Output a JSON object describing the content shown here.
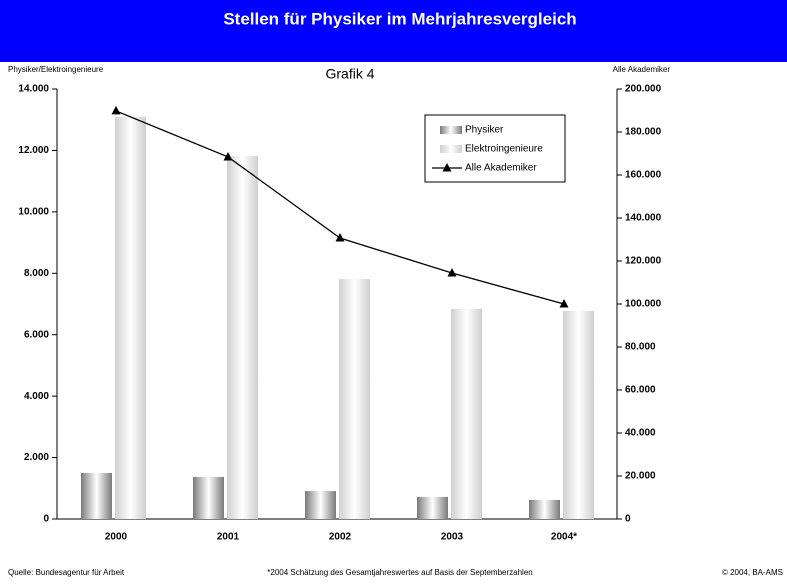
{
  "chart_data": {
    "type": "bar",
    "title": "Stellen für Physiker im Mehrjahresvergleich",
    "subtitle": "Grafik 4",
    "ylabel": "Physiker/Elektroingenieure",
    "y2label": "Alle Akademiker",
    "categories": [
      "2000",
      "2001",
      "2002",
      "2003",
      "2004*"
    ],
    "series": [
      {
        "name": "Physiker",
        "color": "#7a7a7a",
        "values": [
          1500,
          1370,
          910,
          720,
          620
        ]
      },
      {
        "name": "Elektroingenieure",
        "color": "#cfcfcf",
        "values": [
          13090,
          11820,
          7810,
          6840,
          6775
        ]
      },
      {
        "name": "Alle Akademiker",
        "color": "#000000",
        "type": "line",
        "axis": "y2",
        "values": [
          189800,
          168400,
          130700,
          114400,
          100000
        ]
      }
    ],
    "ylim": [
      0,
      14000
    ],
    "yticks": [
      0,
      {
        "value": 2000,
        "label": "2.000"
      },
      {
        "value": 4000,
        "label": "4.000"
      },
      {
        "value": 6000,
        "label": "6.000"
      },
      {
        "value": 8000,
        "label": "8.000"
      },
      {
        "value": 10000,
        "label": "10.000"
      },
      {
        "value": 12000,
        "label": "12.000"
      },
      {
        "value": 14000,
        "label": "14.000"
      }
    ],
    "y2lim": [
      0,
      200000
    ],
    "y2ticks": [
      0,
      {
        "value": 20000,
        "label": "20.000"
      },
      {
        "value": 40000,
        "label": "40.000"
      },
      {
        "value": 60000,
        "label": "60.000"
      },
      {
        "value": 80000,
        "label": "80.000"
      },
      {
        "value": 100000,
        "label": "100.000"
      },
      {
        "value": 120000,
        "label": "120.000"
      },
      {
        "value": 140000,
        "label": "140.000"
      },
      {
        "value": 160000,
        "label": "160.000"
      },
      {
        "value": 180000,
        "label": "180.000"
      },
      {
        "value": 200000,
        "label": "200.000"
      }
    ],
    "grid": false,
    "legend": "upper right",
    "source": "Quelle: Bundesagentur für Arbeit",
    "footnote": "*2004 Schätzung des Gesamtjahreswertes auf Basis der Septemberzahlen",
    "copyright": "© 2004, BA-AMS"
  }
}
